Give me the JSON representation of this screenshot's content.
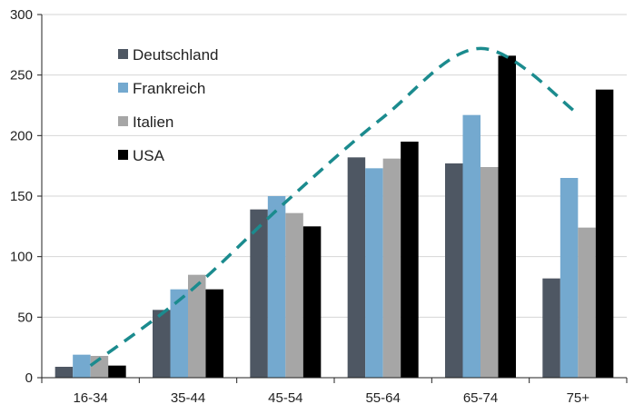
{
  "chart_data": {
    "type": "bar",
    "categories": [
      "16-34",
      "35-44",
      "45-54",
      "55-64",
      "65-74",
      "75+"
    ],
    "series": [
      {
        "name": "Deutschland",
        "color": "#4e5763",
        "values": [
          9,
          56,
          139,
          182,
          177,
          82
        ]
      },
      {
        "name": "Frankreich",
        "color": "#74a9cf",
        "values": [
          19,
          73,
          150,
          173,
          217,
          165
        ]
      },
      {
        "name": "Italien",
        "color": "#a6a6a6",
        "values": [
          18,
          85,
          136,
          181,
          174,
          124
        ]
      },
      {
        "name": "USA",
        "color": "#000000",
        "values": [
          10,
          73,
          125,
          195,
          266,
          238
        ]
      }
    ],
    "trend_line": {
      "style": "dashed",
      "color": "#1b8b8e",
      "points": [
        [
          0,
          10
        ],
        [
          1,
          70
        ],
        [
          2,
          145
        ],
        [
          3,
          215
        ],
        [
          4,
          272
        ],
        [
          5,
          218
        ]
      ]
    },
    "y_ticks": [
      0,
      50,
      100,
      150,
      200,
      250,
      300
    ],
    "ylim": [
      0,
      300
    ],
    "grid": "horizontal",
    "legend_position": "top-left",
    "title": "",
    "xlabel": "",
    "ylabel": ""
  }
}
